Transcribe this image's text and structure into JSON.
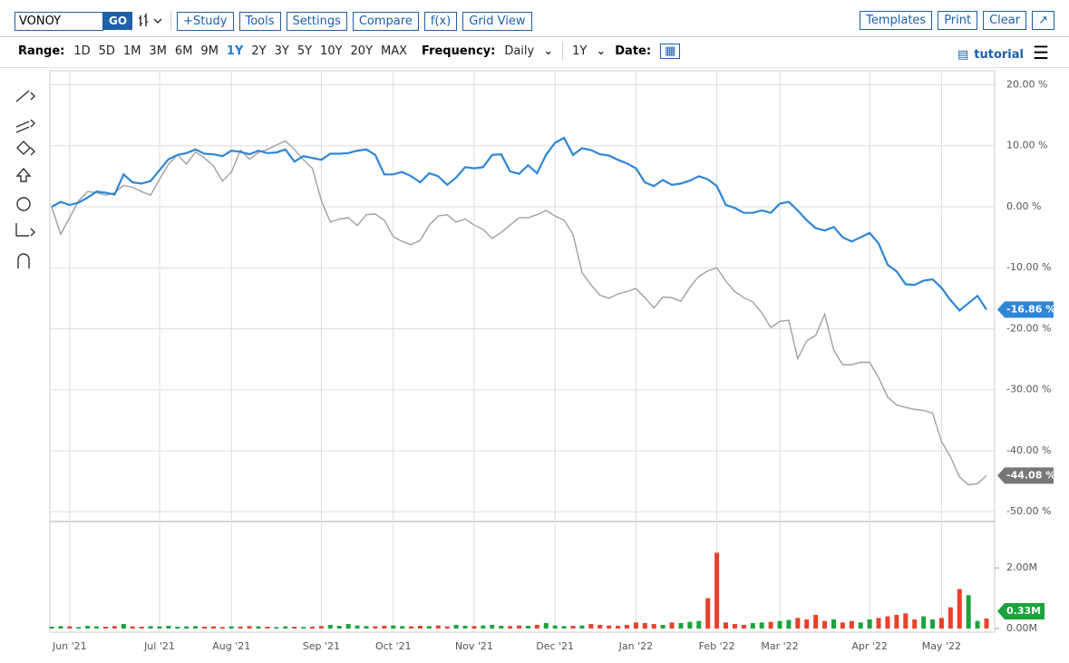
{
  "toolbar": {
    "symbol": "VONOY",
    "go": "GO",
    "buttons": [
      "+Study",
      "Tools",
      "Settings",
      "Compare",
      "f(x)",
      "Grid View"
    ],
    "right_buttons": [
      "Templates",
      "Print",
      "Clear"
    ]
  },
  "rangebar": {
    "range_label": "Range:",
    "ranges": [
      "1D",
      "5D",
      "1M",
      "3M",
      "6M",
      "9M",
      "1Y",
      "2Y",
      "3Y",
      "5Y",
      "10Y",
      "20Y",
      "MAX"
    ],
    "active_range": "1Y",
    "frequency_label": "Frequency:",
    "frequency": "Daily",
    "period": "1Y",
    "date_label": "Date:",
    "tutorial": "tutorial"
  },
  "chart_data": {
    "type": "line",
    "categories": [
      null,
      null,
      "Jun '21",
      null,
      null,
      null,
      null,
      null,
      null,
      null,
      null,
      null,
      "Jul '21",
      null,
      null,
      null,
      null,
      null,
      null,
      null,
      "Aug '21",
      null,
      null,
      null,
      null,
      null,
      null,
      null,
      null,
      null,
      "Sep '21",
      null,
      null,
      null,
      null,
      null,
      null,
      null,
      "Oct '21",
      null,
      null,
      null,
      null,
      null,
      null,
      null,
      null,
      "Nov '21",
      null,
      null,
      null,
      null,
      null,
      null,
      null,
      null,
      "Dec '21",
      null,
      null,
      null,
      null,
      null,
      null,
      null,
      null,
      "Jan '22",
      null,
      null,
      null,
      null,
      null,
      null,
      null,
      null,
      "Feb '22",
      null,
      null,
      null,
      null,
      null,
      null,
      "Mar '22",
      null,
      null,
      null,
      null,
      null,
      null,
      null,
      null,
      null,
      "Apr '22",
      null,
      null,
      null,
      null,
      null,
      null,
      null,
      "May '22",
      null,
      null,
      null,
      null,
      null
    ],
    "series": [
      {
        "color": "#2f86d6",
        "last_value_label": "-16.86 %",
        "values": [
          0,
          0.8,
          0.3,
          0.7,
          1.5,
          2.5,
          2.3,
          2.0,
          5.3,
          4,
          3.8,
          4.2,
          6,
          7.8,
          8.5,
          8.8,
          9.4,
          8.7,
          8.6,
          8.3,
          9.2,
          9.0,
          8.6,
          9.2,
          8.8,
          8.9,
          9.4,
          7.4,
          8.3,
          8,
          7.7,
          8.7,
          8.7,
          8.8,
          9.2,
          9.4,
          8.5,
          5.3,
          5.3,
          5.7,
          5,
          4,
          5.5,
          5,
          3.6,
          4.8,
          6.5,
          6.3,
          6.5,
          8.5,
          8.6,
          5.8,
          5.4,
          6.8,
          5.5,
          8.5,
          10.5,
          11.3,
          8.5,
          9.6,
          9.3,
          8.6,
          8.4,
          7.7,
          7.1,
          6.3,
          4,
          3.4,
          4.4,
          3.6,
          3.8,
          4.3,
          5,
          4.5,
          3.4,
          0.3,
          -0.2,
          -1.0,
          -1.0,
          -0.6,
          -1.0,
          0.5,
          0.8,
          -0.6,
          -2.2,
          -3.5,
          -3.9,
          -3.3,
          -5,
          -5.7,
          -5.0,
          -4.3,
          -6,
          -9.5,
          -10.6,
          -12.7,
          -12.8,
          -12.1,
          -11.9,
          -13.3,
          -15.3,
          -17.0,
          -15.8,
          -14.6,
          -16.86
        ]
      },
      {
        "color": "#a0a0a0",
        "last_value_label": "-44.08 %",
        "values": [
          0,
          -4.5,
          -1.8,
          1,
          2.5,
          2.3,
          1.9,
          2.3,
          3.5,
          3.2,
          2.5,
          1.9,
          4.5,
          7,
          8.5,
          7,
          9,
          8,
          6.7,
          4.2,
          5.7,
          9.3,
          7.8,
          8.9,
          9.4,
          10.1,
          10.8,
          9.4,
          7.7,
          6.3,
          1,
          -2.5,
          -2,
          -1.8,
          -3.1,
          -1.3,
          -1.2,
          -2.2,
          -4.9,
          -5.7,
          -6.2,
          -5.5,
          -3,
          -1.5,
          -1.3,
          -2.5,
          -2,
          -3,
          -3.7,
          -5.2,
          -4.2,
          -3,
          -1.8,
          -1.8,
          -1.3,
          -0.6,
          -1.5,
          -2.2,
          -4.5,
          -10.8,
          -12.8,
          -14.5,
          -15,
          -14.3,
          -13.9,
          -13.4,
          -14.9,
          -16.6,
          -14.8,
          -14.9,
          -15.5,
          -13.2,
          -11.4,
          -10.5,
          -10,
          -12.2,
          -13.9,
          -14.9,
          -15.6,
          -17.4,
          -19.8,
          -18.8,
          -18.6,
          -24.9,
          -22,
          -21.1,
          -17.6,
          -23.5,
          -25.9,
          -25.9,
          -25.5,
          -25.5,
          -28,
          -31.2,
          -32.5,
          -32.9,
          -33.2,
          -33.4,
          -33.8,
          -38.5,
          -41,
          -44.3,
          -45.6,
          -45.4,
          -44.08
        ]
      }
    ],
    "ylim": [
      -51.6,
      22.3
    ],
    "yticks": [
      {
        "value": 20,
        "label": "20.00 %"
      },
      {
        "value": 10,
        "label": "10.00 %"
      },
      {
        "value": 0,
        "label": "0.00 %"
      },
      {
        "value": -10,
        "label": "-10.00 %"
      },
      {
        "value": -20,
        "label": "-20.00 %"
      },
      {
        "value": -30,
        "label": "-30.00 %"
      },
      {
        "value": -40,
        "label": "-40.00 %"
      },
      {
        "value": -50,
        "label": "-50.00 %"
      }
    ],
    "grid": true,
    "volume": {
      "up_color": "#1aa33c",
      "down_color": "#e8412c",
      "last_value_label": "0.33M",
      "values": [
        0.06,
        0.08,
        0.07,
        0.05,
        0.09,
        0.07,
        0.06,
        0.08,
        0.15,
        0.07,
        0.06,
        0.08,
        0.07,
        0.09,
        0.06,
        0.07,
        0.08,
        0.06,
        0.07,
        0.05,
        0.07,
        0.06,
        0.08,
        0.07,
        0.06,
        0.05,
        0.07,
        0.06,
        0.05,
        0.06,
        0.08,
        0.12,
        0.09,
        0.15,
        0.1,
        0.08,
        0.07,
        0.09,
        0.1,
        0.08,
        0.07,
        0.09,
        0.08,
        0.1,
        0.07,
        0.12,
        0.09,
        0.08,
        0.1,
        0.12,
        0.09,
        0.08,
        0.1,
        0.09,
        0.12,
        0.18,
        0.1,
        0.08,
        0.09,
        0.1,
        0.15,
        0.12,
        0.1,
        0.09,
        0.12,
        0.2,
        0.18,
        0.15,
        0.12,
        0.2,
        0.18,
        0.22,
        0.25,
        1.0,
        2.5,
        0.2,
        0.15,
        0.12,
        0.18,
        0.2,
        0.22,
        0.25,
        0.28,
        0.35,
        0.3,
        0.45,
        0.25,
        0.3,
        0.2,
        0.25,
        0.2,
        0.3,
        0.35,
        0.4,
        0.45,
        0.5,
        0.3,
        0.4,
        0.3,
        0.35,
        0.7,
        1.3,
        1.1,
        0.25,
        0.33
      ],
      "ylim": [
        0,
        3.5
      ],
      "yticks": [
        {
          "value": 0,
          "label": "0.00M"
        },
        {
          "value": 2,
          "label": "2.00M"
        }
      ]
    }
  }
}
